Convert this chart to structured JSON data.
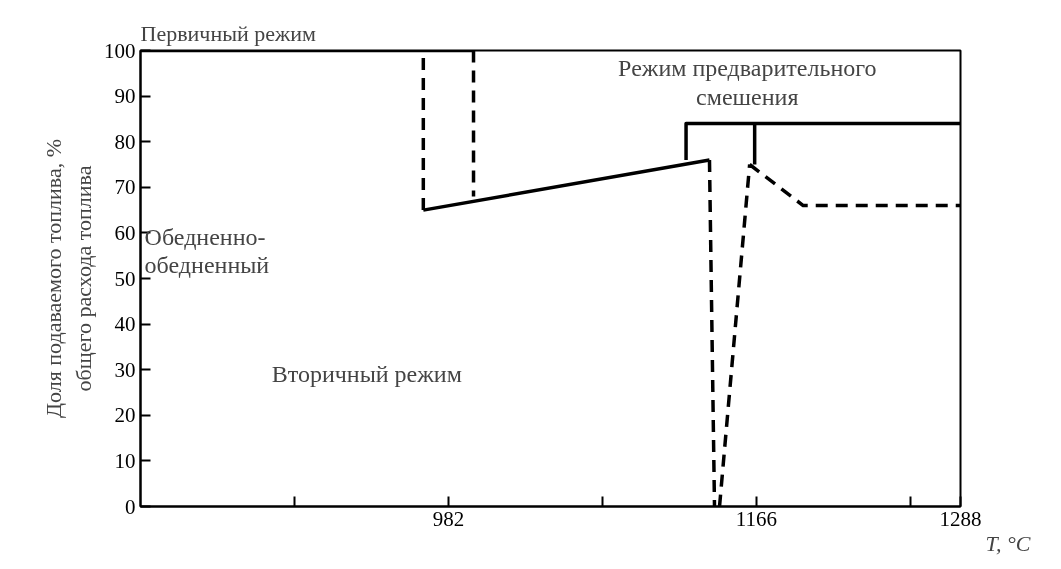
{
  "chart_data": {
    "type": "line",
    "title": "Первичный режим",
    "xlabel": "T, °C",
    "ylabel": "Доля подаваемого топлива, %\nобщего расхода топлива",
    "xlim": [
      798,
      1288
    ],
    "ylim": [
      0,
      100
    ],
    "xticks": [
      {
        "value": 890,
        "label": null
      },
      982,
      {
        "value": 1074,
        "label": null
      },
      1166,
      {
        "value": 1258,
        "label": null
      },
      1288
    ],
    "yticks": [
      0,
      10,
      20,
      30,
      40,
      50,
      60,
      70,
      80,
      90,
      100
    ],
    "grid": false,
    "series": [
      {
        "color": "#000000",
        "line_style": "solid",
        "x": [
          798,
          997
        ],
        "values": [
          100,
          100
        ]
      },
      {
        "color": "#000000",
        "line_style": "dashed",
        "x": [
          997,
          997
        ],
        "values": [
          100,
          68
        ]
      },
      {
        "color": "#000000",
        "line_style": "dashed",
        "x": [
          967,
          967
        ],
        "values": [
          65,
          100
        ]
      },
      {
        "color": "#000000",
        "line_style": "solid",
        "x": [
          967,
          1138
        ],
        "values": [
          65,
          76
        ]
      },
      {
        "color": "#000000",
        "line_style": "dashed",
        "x": [
          1138,
          1141
        ],
        "values": [
          76,
          0
        ]
      },
      {
        "color": "#000000",
        "line_style": "dashed",
        "x": [
          1144,
          1162
        ],
        "values": [
          0,
          75
        ]
      },
      {
        "color": "#000000",
        "line_style": "solid",
        "x": [
          1124,
          1124,
          1288
        ],
        "values": [
          76,
          84,
          84
        ]
      },
      {
        "color": "#000000",
        "line_style": "solid",
        "x": [
          1165,
          1165
        ],
        "values": [
          84,
          75
        ]
      },
      {
        "color": "#000000",
        "line_style": "dashed",
        "x": [
          1162,
          1194,
          1288
        ],
        "values": [
          75,
          66,
          66
        ]
      }
    ],
    "annotations": [
      "Режим предварительного\nсмешения",
      "Обедненно-\nобедненный",
      "Вторичный режим"
    ]
  }
}
